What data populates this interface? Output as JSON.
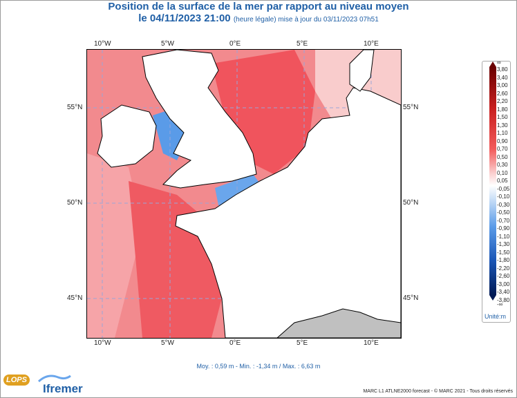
{
  "header": {
    "title": "Position de la surface de la mer par rapport au niveau moyen",
    "date_line": "le 04/11/2023 21:00",
    "update_note": "(heure légale) mise à jour du 03/11/2023 07h51"
  },
  "map": {
    "lon_labels": [
      "10°W",
      "5°W",
      "0°E",
      "5°E",
      "10°E"
    ],
    "lat_labels": [
      "55°N",
      "50°N",
      "45°N"
    ],
    "colors": {
      "positive_strong": "#f0505a",
      "positive_light": "#f9c8c8",
      "negative": "#5a9be8",
      "land": "#ffffff",
      "land_gray": "#c0c0c0"
    }
  },
  "legend": {
    "top_symbol": "∞",
    "bottom_symbol": "-∞",
    "labels": [
      "3,80",
      "3,40",
      "3,00",
      "2,60",
      "2,20",
      "1,80",
      "1,50",
      "1,30",
      "1,10",
      "0,90",
      "0,70",
      "0,50",
      "0,30",
      "0,10",
      "0,05",
      "-0,05",
      "-0,10",
      "-0,30",
      "-0,50",
      "-0,70",
      "-0,90",
      "-1,10",
      "-1,30",
      "-1,50",
      "-1,80",
      "-2,20",
      "-2,60",
      "-3,00",
      "-3,40",
      "-3,80"
    ],
    "unit": "Unité:m"
  },
  "footer": {
    "stats": "Moy. : 0,59 m   -   Min. : -1,34 m / Max. : 6,63 m",
    "credit": "MARC L1 ATLNE2000 forecast - © MARC 2021 - Tous droits réservés",
    "logo_lops": "LOPS",
    "logo_ifremer": "Ifremer"
  }
}
